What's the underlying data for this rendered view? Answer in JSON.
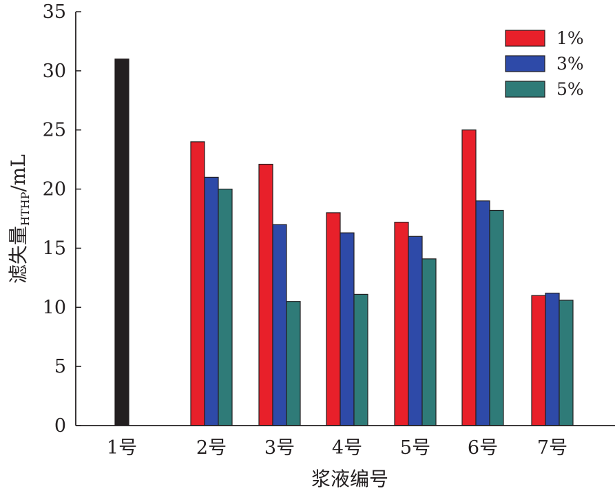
{
  "chart_data": {
    "type": "bar",
    "categories": [
      "1号",
      "2号",
      "3号",
      "4号",
      "5号",
      "6号",
      "7号"
    ],
    "series": [
      {
        "name": "1%",
        "color": "#e8202a",
        "values": [
          null,
          24,
          22.1,
          18,
          17.2,
          25,
          11
        ]
      },
      {
        "name": "3%",
        "color": "#2e4aa8",
        "values": [
          null,
          21,
          17,
          16.3,
          16,
          19,
          11.2
        ]
      },
      {
        "name": "5%",
        "color": "#2f7b78",
        "values": [
          null,
          20,
          10.5,
          11.1,
          14.1,
          18.2,
          10.6
        ]
      }
    ],
    "baseline": {
      "category": "1号",
      "value": 31,
      "color": "#231f20"
    },
    "xlabel": "浆液编号",
    "ylabel": {
      "main": "滤失量",
      "subscript": "HTHP",
      "unit": "/mL"
    },
    "ylim": [
      0,
      35
    ],
    "yticks": [
      0,
      5,
      10,
      15,
      20,
      25,
      30,
      35
    ],
    "grid": false,
    "legend_position": "top-right"
  }
}
